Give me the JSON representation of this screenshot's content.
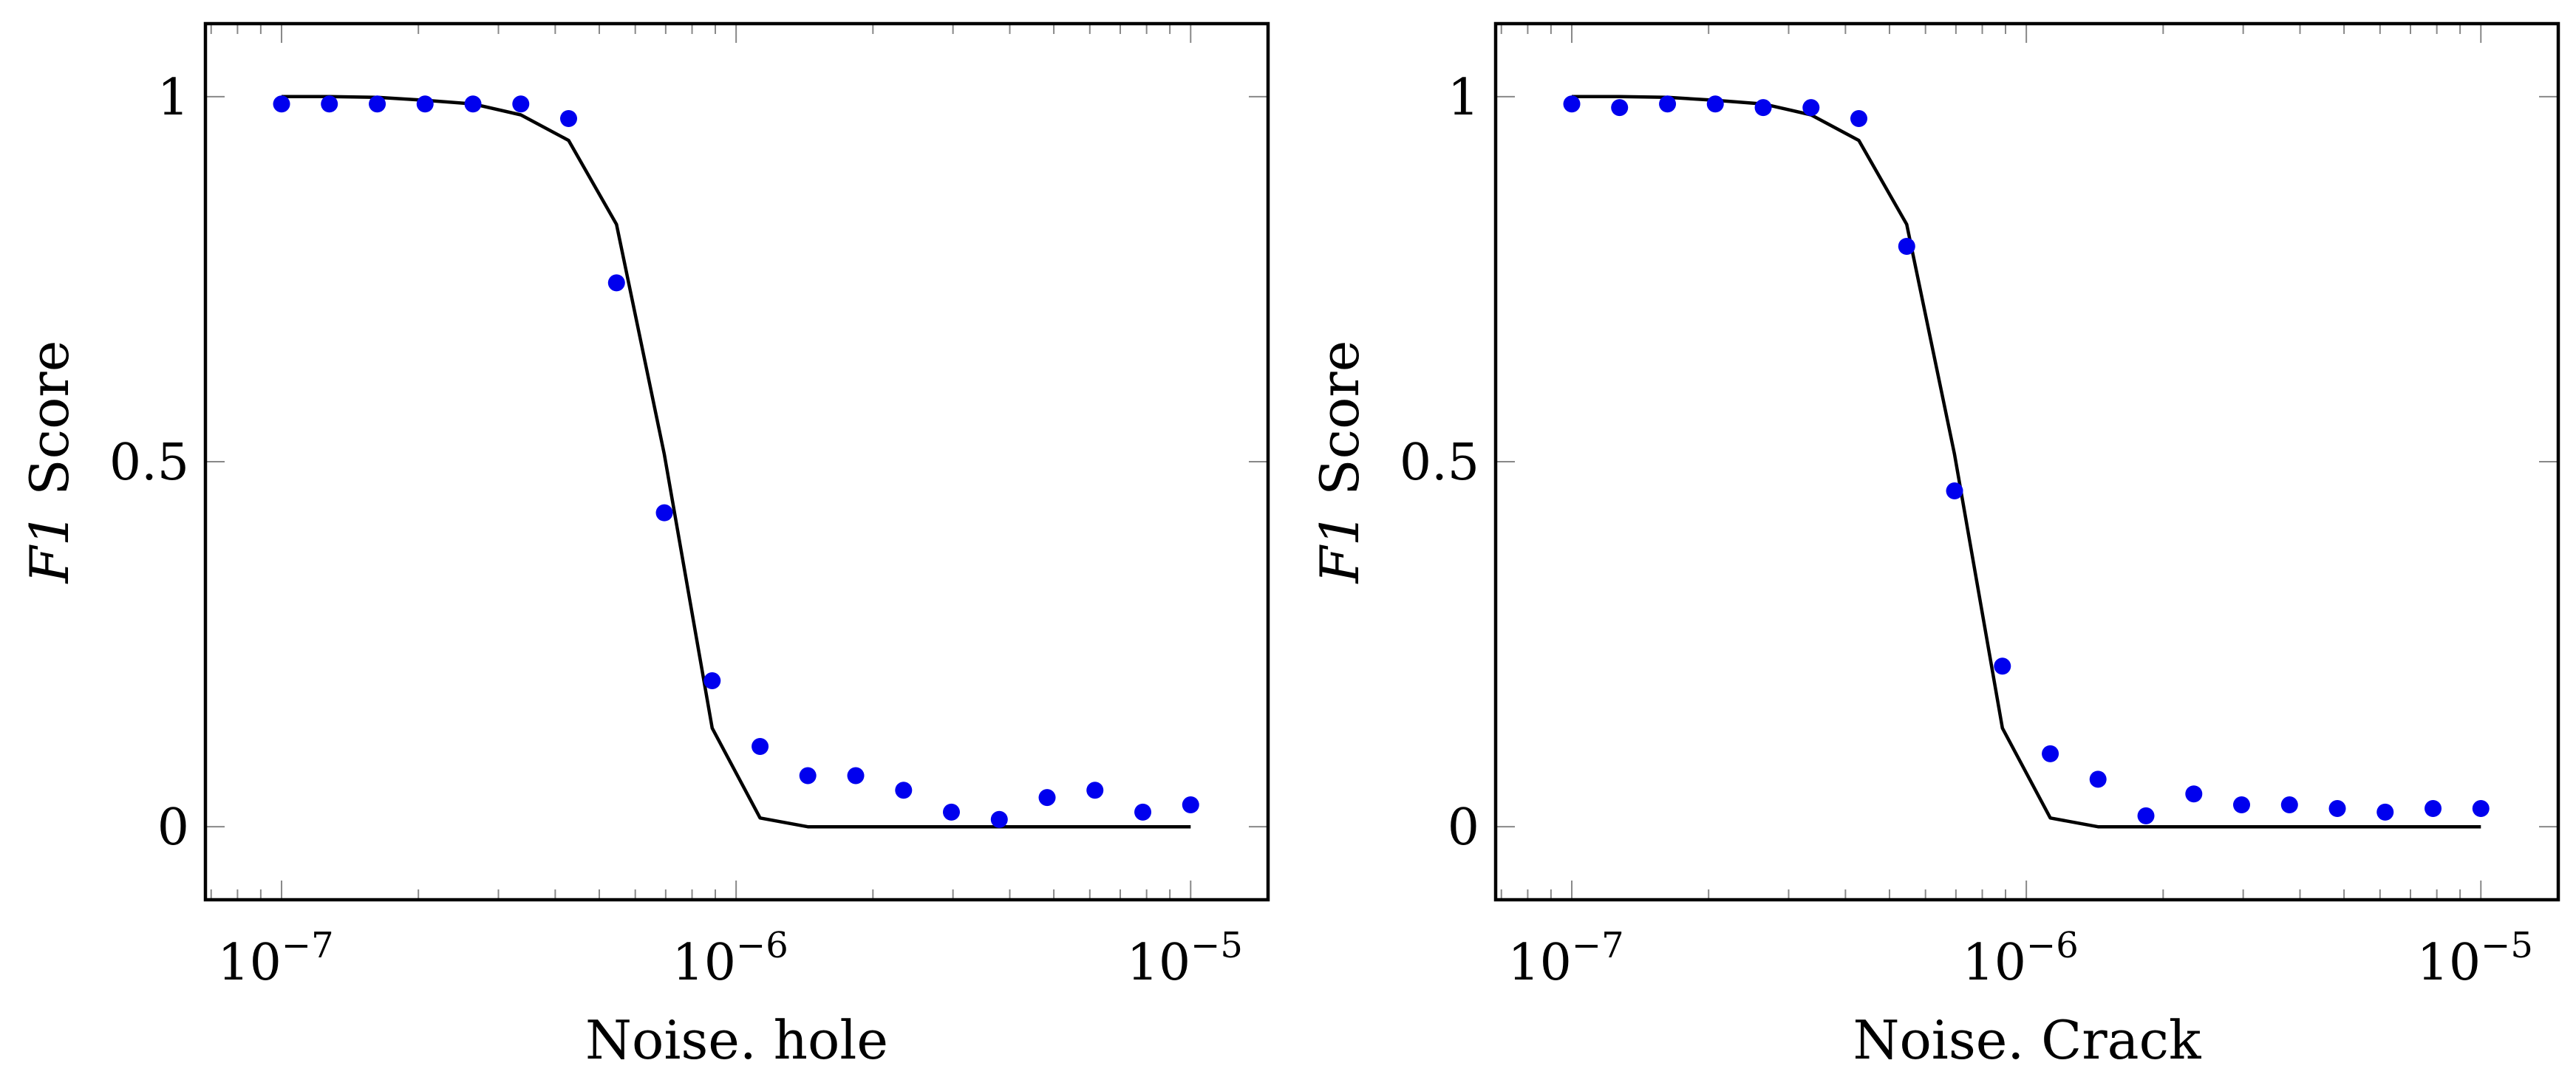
{
  "colors": {
    "points": "#0000ee",
    "line": "#000000",
    "frame": "#000000",
    "ticks": "#888888"
  },
  "chart_data": [
    {
      "type": "scatter",
      "xscale": "log",
      "xlim": [
        6.8e-08,
        1.48e-05
      ],
      "ylim": [
        -0.1,
        1.1
      ],
      "title": "",
      "xlabel": "Noise. hole",
      "ylabel_italic": "F1",
      "ylabel_rest": "Score",
      "ytick_values": [
        0,
        0.5,
        1
      ],
      "ytick_labels": [
        "0",
        "0.5",
        "1"
      ],
      "xtick_base": "10",
      "xtick_exponents": [
        "−7",
        "−6",
        "−5"
      ],
      "xtick_values": [
        1e-07,
        1e-06,
        1e-05
      ],
      "series": [
        {
          "name": "measured",
          "kind": "points",
          "x": [
            1e-07,
            1.274e-07,
            1.624e-07,
            2.069e-07,
            2.637e-07,
            3.36e-07,
            4.281e-07,
            5.456e-07,
            6.952e-07,
            8.859e-07,
            1.129e-06,
            1.438e-06,
            1.833e-06,
            2.336e-06,
            2.976e-06,
            3.793e-06,
            4.833e-06,
            6.158e-06,
            7.848e-06,
            1e-05
          ],
          "y": [
            0.99,
            0.99,
            0.99,
            0.99,
            0.99,
            0.99,
            0.97,
            0.745,
            0.43,
            0.2,
            0.11,
            0.07,
            0.07,
            0.05,
            0.02,
            0.01,
            0.04,
            0.05,
            0.02,
            0.03
          ]
        },
        {
          "name": "fit",
          "kind": "line",
          "x": [
            1e-07,
            1.274e-07,
            1.624e-07,
            2.069e-07,
            2.637e-07,
            3.36e-07,
            4.281e-07,
            5.456e-07,
            6.952e-07,
            8.859e-07,
            1.129e-06,
            1.438e-06,
            1.833e-06,
            2.336e-06,
            2.976e-06,
            3.793e-06,
            4.833e-06,
            6.158e-06,
            7.848e-06,
            1e-05
          ],
          "y": [
            1.0,
            1.0,
            0.999,
            0.995,
            0.99,
            0.975,
            0.94,
            0.825,
            0.51,
            0.135,
            0.012,
            0.0,
            0.0,
            0.0,
            0.0,
            0.0,
            0.0,
            0.0,
            0.0,
            0.0
          ]
        }
      ]
    },
    {
      "type": "scatter",
      "xscale": "log",
      "xlim": [
        6.8e-08,
        1.48e-05
      ],
      "ylim": [
        -0.1,
        1.1
      ],
      "title": "",
      "xlabel": "Noise. Crack",
      "ylabel_italic": "F1",
      "ylabel_rest": "Score",
      "ytick_values": [
        0,
        0.5,
        1
      ],
      "ytick_labels": [
        "0",
        "0.5",
        "1"
      ],
      "xtick_base": "10",
      "xtick_exponents": [
        "−7",
        "−6",
        "−5"
      ],
      "xtick_values": [
        1e-07,
        1e-06,
        1e-05
      ],
      "series": [
        {
          "name": "measured",
          "kind": "points",
          "x": [
            1e-07,
            1.274e-07,
            1.624e-07,
            2.069e-07,
            2.637e-07,
            3.36e-07,
            4.281e-07,
            5.456e-07,
            6.952e-07,
            8.859e-07,
            1.129e-06,
            1.438e-06,
            1.833e-06,
            2.336e-06,
            2.976e-06,
            3.793e-06,
            4.833e-06,
            6.158e-06,
            7.848e-06,
            1e-05
          ],
          "y": [
            0.99,
            0.985,
            0.99,
            0.99,
            0.985,
            0.985,
            0.97,
            0.795,
            0.46,
            0.22,
            0.1,
            0.065,
            0.015,
            0.045,
            0.03,
            0.03,
            0.025,
            0.02,
            0.025,
            0.025
          ]
        },
        {
          "name": "fit",
          "kind": "line",
          "x": [
            1e-07,
            1.274e-07,
            1.624e-07,
            2.069e-07,
            2.637e-07,
            3.36e-07,
            4.281e-07,
            5.456e-07,
            6.952e-07,
            8.859e-07,
            1.129e-06,
            1.438e-06,
            1.833e-06,
            2.336e-06,
            2.976e-06,
            3.793e-06,
            4.833e-06,
            6.158e-06,
            7.848e-06,
            1e-05
          ],
          "y": [
            1.0,
            1.0,
            0.999,
            0.995,
            0.99,
            0.975,
            0.94,
            0.825,
            0.51,
            0.135,
            0.012,
            0.0,
            0.0,
            0.0,
            0.0,
            0.0,
            0.0,
            0.0,
            0.0,
            0.0
          ]
        }
      ]
    }
  ]
}
